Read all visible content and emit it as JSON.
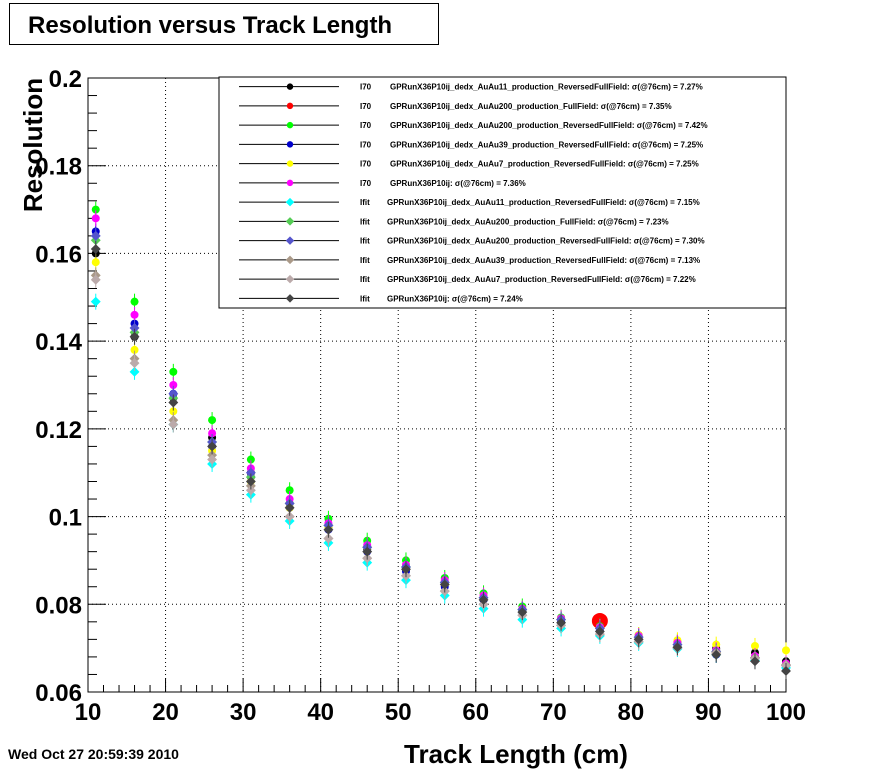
{
  "timestamp": "Wed Oct 27 20:59:39 2010",
  "chart_data": {
    "type": "scatter",
    "title": "Resolution versus Track Length",
    "xlabel": "Track Length (cm)",
    "ylabel": "Resolution",
    "xlim": [
      10,
      100
    ],
    "ylim": [
      0.06,
      0.2
    ],
    "x_ticks": [
      "10",
      "20",
      "30",
      "40",
      "50",
      "60",
      "70",
      "80",
      "90",
      "100"
    ],
    "y_ticks": [
      "0.06",
      "0.08",
      "0.1",
      "0.12",
      "0.14",
      "0.16",
      "0.18",
      "0.2"
    ],
    "grid": true,
    "legend_position": "top-right",
    "x": [
      11,
      16,
      21,
      26,
      31,
      36,
      41,
      46,
      51,
      56,
      61,
      66,
      71,
      76,
      81,
      86,
      91,
      96,
      100
    ],
    "series": [
      {
        "method": "I70",
        "dataset": "GPRunX36P10ij_dedx_AuAu11_production_ReversedFullField:",
        "sigma": "7.27%",
        "color": "#000000",
        "values": [
          0.16,
          0.141,
          0.127,
          0.118,
          0.11,
          0.103,
          0.0975,
          0.0925,
          0.088,
          0.0845,
          0.081,
          0.0785,
          0.0765,
          0.0745,
          0.0725,
          0.0712,
          0.07,
          0.069,
          0.067
        ]
      },
      {
        "method": "I70",
        "dataset": "GPRunX36P10ij_dedx_AuAu200_production_FullField:",
        "sigma": "7.35%",
        "color": "#ff0000",
        "values": [
          null,
          null,
          null,
          null,
          null,
          null,
          null,
          null,
          null,
          null,
          null,
          null,
          null,
          0.0762,
          null,
          null,
          null,
          null,
          null
        ]
      },
      {
        "method": "I70",
        "dataset": "GPRunX36P10ij_dedx_AuAu200_production_ReversedFullField:",
        "sigma": "7.42%",
        "color": "#00ff00",
        "values": [
          0.17,
          0.149,
          0.133,
          0.122,
          0.113,
          0.106,
          0.0995,
          0.0945,
          0.09,
          0.086,
          0.0825,
          0.0795,
          0.077,
          0.075,
          0.073,
          0.0715,
          0.0695,
          0.068,
          0.066
        ]
      },
      {
        "method": "I70",
        "dataset": "GPRunX36P10ij_dedx_AuAu39_production_ReversedFullField:",
        "sigma": "7.25%",
        "color": "#0000cc",
        "values": [
          0.165,
          0.144,
          0.128,
          0.116,
          0.109,
          0.102,
          0.097,
          0.092,
          0.0875,
          0.084,
          0.081,
          0.0782,
          0.076,
          0.074,
          0.072,
          0.0705,
          0.0685,
          0.0672,
          0.0655
        ]
      },
      {
        "method": "I70",
        "dataset": "GPRunX36P10ij_dedx_AuAu7_production_ReversedFullField:",
        "sigma": "7.25%",
        "color": "#ffff00",
        "values": [
          0.158,
          0.138,
          0.124,
          0.115,
          0.108,
          0.102,
          0.0975,
          0.093,
          0.0885,
          0.085,
          0.082,
          0.079,
          0.0768,
          0.0748,
          0.073,
          0.0718,
          0.0708,
          0.0705,
          0.0695
        ]
      },
      {
        "method": "I70",
        "dataset": "GPRunX36P10ij:",
        "sigma": "7.36%",
        "color": "#ff00ff",
        "values": [
          0.168,
          0.146,
          0.13,
          0.119,
          0.111,
          0.104,
          0.0985,
          0.0935,
          0.089,
          0.0855,
          0.082,
          0.079,
          0.0768,
          0.0748,
          0.0728,
          0.0712,
          0.0695,
          0.0682,
          0.0665
        ]
      },
      {
        "method": "Ifit",
        "dataset": "GPRunX36P10ij_dedx_AuAu11_production_ReversedFullField:",
        "sigma": "7.15%",
        "color": "#00ffff",
        "values": [
          0.149,
          0.133,
          0.121,
          0.112,
          0.105,
          0.099,
          0.094,
          0.0895,
          0.0855,
          0.082,
          0.079,
          0.0765,
          0.0745,
          0.0728,
          0.0712,
          0.0698,
          0.0685,
          0.0672,
          0.0655
        ]
      },
      {
        "method": "Ifit",
        "dataset": "GPRunX36P10ij_dedx_AuAu200_production_FullField:",
        "sigma": "7.23%",
        "color": "#55cc55",
        "values": [
          0.163,
          0.142,
          0.127,
          0.117,
          0.109,
          0.103,
          0.098,
          0.093,
          0.0885,
          0.085,
          0.0815,
          0.0788,
          0.0765,
          0.0745,
          0.0725,
          0.0708,
          0.0692,
          0.0678,
          0.066
        ]
      },
      {
        "method": "Ifit",
        "dataset": "GPRunX36P10ij_dedx_AuAu200_production_ReversedFullField:",
        "sigma": "7.30%",
        "color": "#5555cc",
        "values": [
          0.164,
          0.143,
          0.128,
          0.117,
          0.11,
          0.103,
          0.098,
          0.093,
          0.0885,
          0.085,
          0.0815,
          0.0788,
          0.0765,
          0.0745,
          0.0725,
          0.0708,
          0.0692,
          0.0678,
          0.066
        ]
      },
      {
        "method": "Ifit",
        "dataset": "GPRunX36P10ij_dedx_AuAu39_production_ReversedFullField:",
        "sigma": "7.13%",
        "color": "#aa9988",
        "values": [
          0.155,
          0.136,
          0.122,
          0.114,
          0.107,
          0.1,
          0.095,
          0.0905,
          0.0865,
          0.083,
          0.08,
          0.0775,
          0.0752,
          0.0732,
          0.0715,
          0.0702,
          0.069,
          0.0678,
          0.0662
        ]
      },
      {
        "method": "Ifit",
        "dataset": "GPRunX36P10ij_dedx_AuAu7_production_ReversedFullField:",
        "sigma": "7.22%",
        "color": "#bbaaaa",
        "values": [
          0.154,
          0.135,
          0.121,
          0.113,
          0.106,
          0.1,
          0.095,
          0.0905,
          0.0865,
          0.083,
          0.08,
          0.0775,
          0.0752,
          0.0732,
          0.0715,
          0.07,
          0.0688,
          0.0676,
          0.066
        ]
      },
      {
        "method": "Ifit",
        "dataset": "GPRunX36P10ij:",
        "sigma": "7.24%",
        "color": "#444444",
        "values": [
          0.161,
          0.141,
          0.126,
          0.116,
          0.108,
          0.102,
          0.097,
          0.092,
          0.088,
          0.0845,
          0.081,
          0.0782,
          0.0758,
          0.0738,
          0.072,
          0.0702,
          0.0685,
          0.067,
          0.0648
        ]
      }
    ],
    "legend_sigma_prefix": "σ(@76cm) = "
  }
}
